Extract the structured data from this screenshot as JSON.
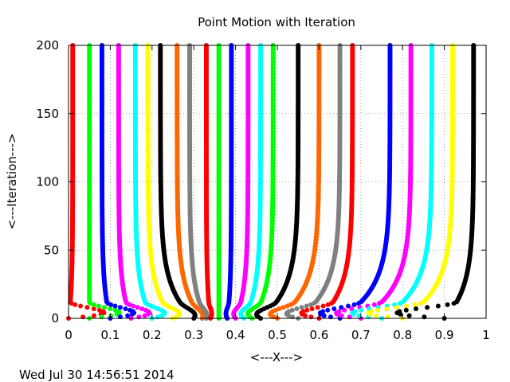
{
  "chart_data": {
    "type": "scatter",
    "title": "Point Motion with Iteration",
    "xlabel": "<---X--->",
    "ylabel": "<---Iteration--->",
    "timestamp": "Wed Jul 30 14:56:51 2014",
    "xlim": [
      0,
      1
    ],
    "ylim": [
      0,
      200
    ],
    "xticks": [
      "0",
      "0.1",
      "0.2",
      "0.3",
      "0.4",
      "0.5",
      "0.6",
      "0.7",
      "0.8",
      "0.9",
      "1"
    ],
    "yticks": [
      "0",
      "50",
      "100",
      "150",
      "200"
    ],
    "grid": true,
    "legend": "none",
    "iterations": 200,
    "series": [
      {
        "color": "#ff0000",
        "start": 0.0,
        "end": 0.01
      },
      {
        "color": "#00ff00",
        "start": 0.05,
        "end": 0.05
      },
      {
        "color": "#0000ff",
        "start": 0.1,
        "end": 0.08
      },
      {
        "color": "#ff00ff",
        "start": 0.15,
        "end": 0.12
      },
      {
        "color": "#00ffff",
        "start": 0.2,
        "end": 0.16
      },
      {
        "color": "#ffff00",
        "start": 0.25,
        "end": 0.19
      },
      {
        "color": "#000000",
        "start": 0.3,
        "end": 0.22
      },
      {
        "color": "#ff6600",
        "start": 0.32,
        "end": 0.26
      },
      {
        "color": "#808080",
        "start": 0.33,
        "end": 0.29
      },
      {
        "color": "#ff0000",
        "start": 0.34,
        "end": 0.33
      },
      {
        "color": "#00ff00",
        "start": 0.36,
        "end": 0.36
      },
      {
        "color": "#0000ff",
        "start": 0.38,
        "end": 0.39
      },
      {
        "color": "#ff00ff",
        "start": 0.4,
        "end": 0.43
      },
      {
        "color": "#00ffff",
        "start": 0.42,
        "end": 0.46
      },
      {
        "color": "#00ff00",
        "start": 0.44,
        "end": 0.49
      },
      {
        "color": "#000000",
        "start": 0.46,
        "end": 0.55
      },
      {
        "color": "#ff6600",
        "start": 0.5,
        "end": 0.6
      },
      {
        "color": "#808080",
        "start": 0.55,
        "end": 0.65
      },
      {
        "color": "#ff0000",
        "start": 0.6,
        "end": 0.68
      },
      {
        "color": "#0000ff",
        "start": 0.65,
        "end": 0.77
      },
      {
        "color": "#ff00ff",
        "start": 0.7,
        "end": 0.82
      },
      {
        "color": "#00ffff",
        "start": 0.75,
        "end": 0.87
      },
      {
        "color": "#ffff00",
        "start": 0.8,
        "end": 0.92
      },
      {
        "color": "#000000",
        "start": 0.9,
        "end": 0.97
      }
    ]
  }
}
